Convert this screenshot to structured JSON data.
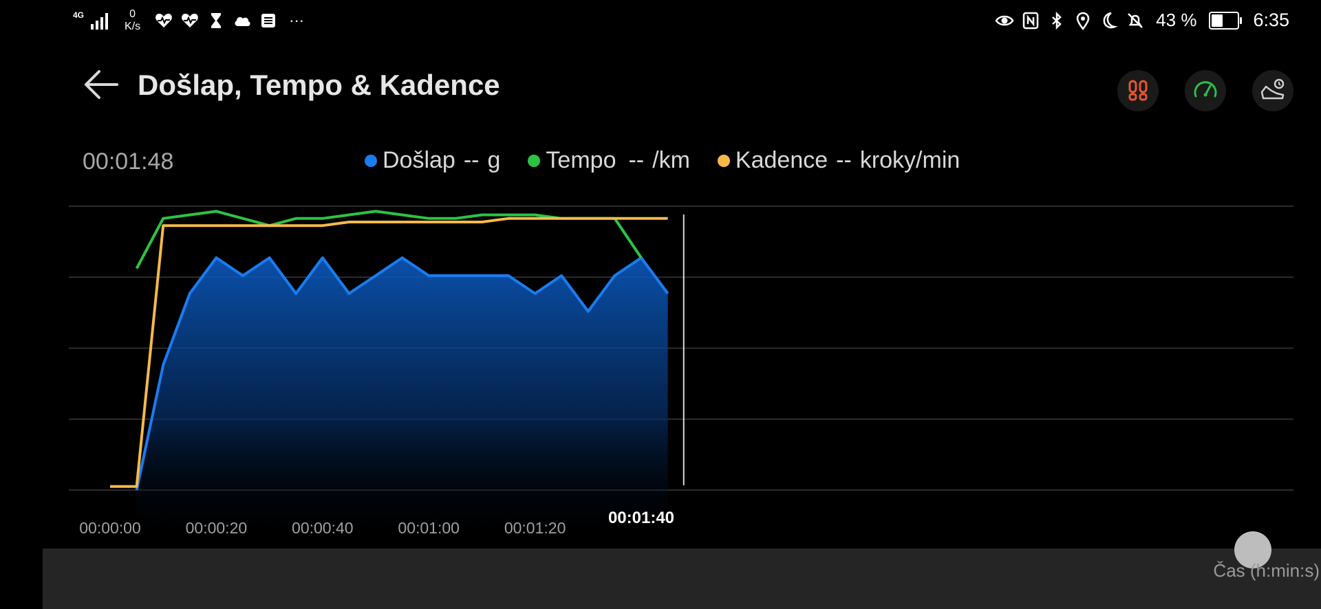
{
  "status_bar": {
    "network": "4G",
    "speed_value": "0",
    "speed_unit": "K/s",
    "overflow": "···",
    "battery": "43 %",
    "battery_level": 0.43,
    "time": "6:35"
  },
  "header": {
    "title": "Došlap, Tempo  & Kadence",
    "modes": [
      {
        "name": "footprints-icon",
        "color": "#e8572f"
      },
      {
        "name": "speedometer-icon",
        "color": "#2fbf4a"
      },
      {
        "name": "shoe-icon",
        "color": "#cfcfcf"
      }
    ]
  },
  "current_time": "00:01:48",
  "legend": [
    {
      "label": "Došlap",
      "value": "--",
      "unit": "g",
      "color": "#1a7cf0"
    },
    {
      "label": "Tempo",
      "value": "--",
      "unit": "/km",
      "color": "#2cc443"
    },
    {
      "label": "Kadence",
      "value": "--",
      "unit": "kroky/min",
      "color": "#f5b94a"
    }
  ],
  "chart_data": {
    "type": "line",
    "x_ticks": [
      "00:00:00",
      "00:00:20",
      "00:00:40",
      "00:01:00",
      "00:01:20"
    ],
    "active_tick": "00:01:40",
    "xlabel": "Čas (h:min:s)",
    "x_seconds": [
      0,
      5,
      10,
      15,
      20,
      25,
      30,
      35,
      40,
      45,
      50,
      55,
      60,
      65,
      70,
      75,
      80,
      85,
      90,
      95,
      100,
      105
    ],
    "grid": true,
    "series": [
      {
        "name": "Došlap",
        "color": "#1a7cf0",
        "filled": true,
        "x": [
          5,
          10,
          15,
          20,
          25,
          30,
          35,
          40,
          45,
          50,
          55,
          60,
          65,
          70,
          75,
          80,
          85,
          90,
          95,
          100,
          105
        ],
        "values": [
          0,
          35,
          55,
          65,
          60,
          65,
          55,
          65,
          55,
          60,
          65,
          60,
          60,
          60,
          60,
          55,
          60,
          50,
          60,
          65,
          55
        ]
      },
      {
        "name": "Tempo",
        "color": "#2cc443",
        "filled": false,
        "x": [
          5,
          10,
          15,
          20,
          25,
          30,
          35,
          40,
          45,
          50,
          55,
          60,
          65,
          70,
          75,
          80,
          85,
          90,
          95,
          100
        ],
        "values": [
          62,
          76,
          77,
          78,
          76,
          74,
          76,
          76,
          77,
          78,
          77,
          76,
          76,
          77,
          77,
          77,
          76,
          76,
          76,
          65
        ]
      },
      {
        "name": "Kadence",
        "color": "#f5b94a",
        "filled": false,
        "x": [
          0,
          5,
          10,
          15,
          20,
          25,
          30,
          35,
          40,
          45,
          50,
          55,
          60,
          65,
          70,
          75,
          80,
          85,
          90,
          95,
          100,
          105
        ],
        "values": [
          1,
          1,
          74,
          74,
          74,
          74,
          74,
          74,
          74,
          75,
          75,
          75,
          75,
          75,
          75,
          76,
          76,
          76,
          76,
          76,
          76,
          76
        ]
      }
    ]
  }
}
